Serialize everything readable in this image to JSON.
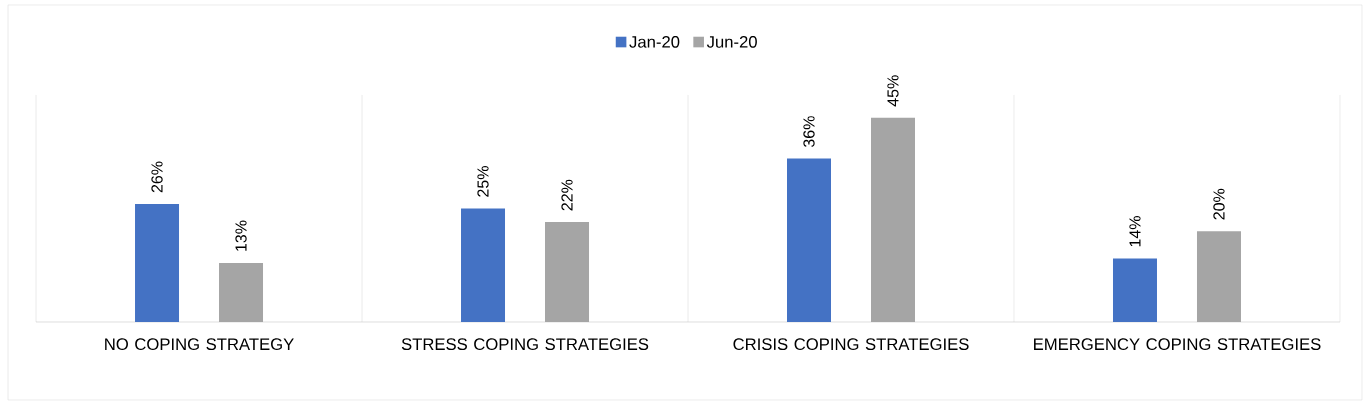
{
  "chart_data": {
    "type": "bar",
    "categories": [
      "NO COPING STRATEGY",
      "STRESS COPING STRATEGIES",
      "CRISIS COPING STRATEGIES",
      "EMERGENCY COPING STRATEGIES"
    ],
    "series": [
      {
        "name": "Jan-20",
        "color": "#4472c4",
        "values": [
          26,
          25,
          36,
          14
        ],
        "value_labels": [
          "26%",
          "25%",
          "36%",
          "14%"
        ]
      },
      {
        "name": "Jun-20",
        "color": "#a5a5a5",
        "values": [
          13,
          22,
          45,
          20
        ],
        "value_labels": [
          "13%",
          "22%",
          "45%",
          "20%"
        ]
      }
    ],
    "ylim": [
      0,
      50
    ],
    "grid": "x",
    "legend": "top"
  }
}
